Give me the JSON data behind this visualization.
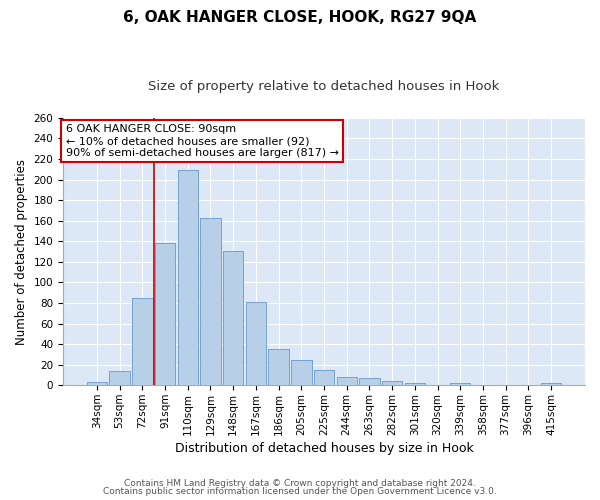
{
  "title": "6, OAK HANGER CLOSE, HOOK, RG27 9QA",
  "subtitle": "Size of property relative to detached houses in Hook",
  "xlabel": "Distribution of detached houses by size in Hook",
  "ylabel": "Number of detached properties",
  "categories": [
    "34sqm",
    "53sqm",
    "72sqm",
    "91sqm",
    "110sqm",
    "129sqm",
    "148sqm",
    "167sqm",
    "186sqm",
    "205sqm",
    "225sqm",
    "244sqm",
    "263sqm",
    "282sqm",
    "301sqm",
    "320sqm",
    "339sqm",
    "358sqm",
    "377sqm",
    "396sqm",
    "415sqm"
  ],
  "values": [
    3,
    14,
    85,
    138,
    209,
    163,
    131,
    81,
    35,
    25,
    15,
    8,
    7,
    4,
    2,
    0,
    2,
    0,
    0,
    0,
    2
  ],
  "bar_color": "#b8cfe8",
  "bar_edge_color": "#6699cc",
  "vline_color": "#cc0000",
  "ylim": [
    0,
    260
  ],
  "yticks": [
    0,
    20,
    40,
    60,
    80,
    100,
    120,
    140,
    160,
    180,
    200,
    220,
    240,
    260
  ],
  "annotation_title": "6 OAK HANGER CLOSE: 90sqm",
  "annotation_line1": "← 10% of detached houses are smaller (92)",
  "annotation_line2": "90% of semi-detached houses are larger (817) →",
  "annotation_box_color": "#ffffff",
  "annotation_box_edge_color": "#cc0000",
  "bg_color": "#dce8f5",
  "footer1": "Contains HM Land Registry data © Crown copyright and database right 2024.",
  "footer2": "Contains public sector information licensed under the Open Government Licence v3.0.",
  "title_fontsize": 11,
  "subtitle_fontsize": 9.5,
  "xlabel_fontsize": 9,
  "ylabel_fontsize": 8.5,
  "tick_fontsize": 7.5,
  "annotation_fontsize": 8,
  "footer_fontsize": 6.5
}
